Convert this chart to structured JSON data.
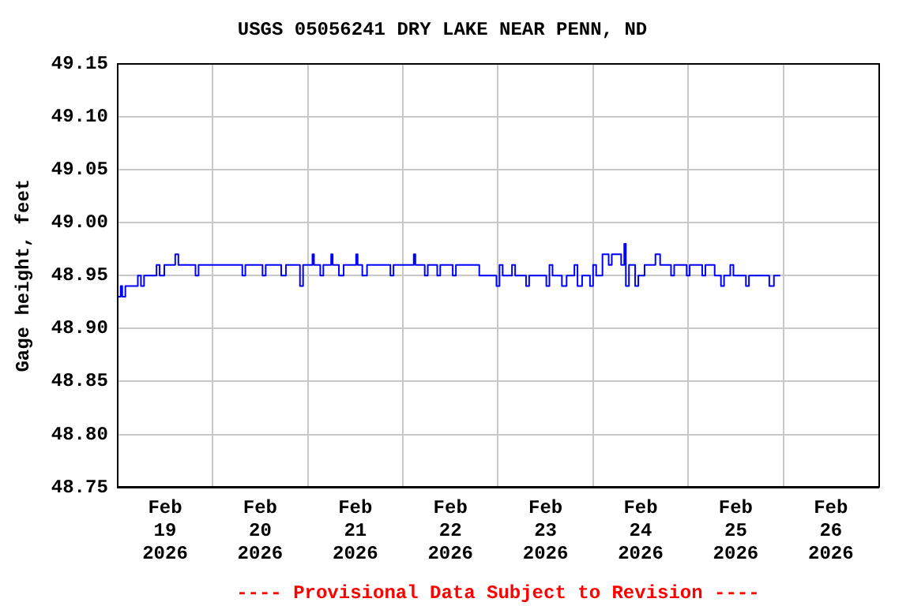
{
  "chart_data": {
    "type": "step",
    "title": "USGS 05056241 DRY LAKE NEAR PENN, ND",
    "ylabel": "Gage height, feet",
    "annotations": [
      "---- Provisional Data Subject to Revision ----"
    ],
    "x": [
      "2026-02-19T00:00",
      "2026-02-19T00:47",
      "2026-02-19T01:11",
      "2026-02-19T01:58",
      "2026-02-19T03:56",
      "2026-02-19T05:07",
      "2026-02-19T05:54",
      "2026-02-19T06:41",
      "2026-02-19T09:50",
      "2026-02-19T10:37",
      "2026-02-19T11:48",
      "2026-02-19T13:46",
      "2026-02-19T14:33",
      "2026-02-19T15:21",
      "2026-02-19T19:40",
      "2026-02-19T20:27",
      "2026-02-20T01:34",
      "2026-02-20T07:29",
      "2026-02-20T08:15",
      "2026-02-20T12:35",
      "2026-02-20T13:23",
      "2026-02-20T17:18",
      "2026-02-20T18:29",
      "2026-02-20T22:02",
      "2026-02-20T22:49",
      "2026-02-21T01:11",
      "2026-02-21T01:34",
      "2026-02-21T03:09",
      "2026-02-21T03:56",
      "2026-02-21T05:54",
      "2026-02-21T06:17",
      "2026-02-21T07:52",
      "2026-02-21T09:03",
      "2026-02-21T12:12",
      "2026-02-21T12:35",
      "2026-02-21T13:46",
      "2026-02-21T14:57",
      "2026-02-21T20:51",
      "2026-02-21T21:38",
      "2026-02-22T02:45",
      "2026-02-22T03:09",
      "2026-02-22T05:31",
      "2026-02-22T06:17",
      "2026-02-22T08:40",
      "2026-02-22T09:26",
      "2026-02-22T12:35",
      "2026-02-22T13:23",
      "2026-02-22T16:31",
      "2026-02-22T19:17",
      "2026-02-22T22:26",
      "2026-02-22T23:37",
      "2026-02-23T00:23",
      "2026-02-23T01:11",
      "2026-02-23T03:32",
      "2026-02-23T04:20",
      "2026-02-23T07:05",
      "2026-02-23T07:52",
      "2026-02-23T12:12",
      "2026-02-23T12:59",
      "2026-02-23T13:46",
      "2026-02-23T16:08",
      "2026-02-23T17:19",
      "2026-02-23T19:17",
      "2026-02-23T20:04",
      "2026-02-23T21:14",
      "2026-02-23T23:13",
      "2026-02-24T00:00",
      "2026-02-24T00:47",
      "2026-02-24T02:22",
      "2026-02-24T03:56",
      "2026-02-24T04:43",
      "2026-02-24T07:05",
      "2026-02-24T07:52",
      "2026-02-24T08:16",
      "2026-02-24T09:03",
      "2026-02-24T10:37",
      "2026-02-24T11:25",
      "2026-02-24T12:59",
      "2026-02-24T15:44",
      "2026-02-24T16:55",
      "2026-02-24T19:40",
      "2026-02-24T20:28",
      "2026-02-24T23:37",
      "2026-02-25T00:23",
      "2026-02-25T03:32",
      "2026-02-25T04:20",
      "2026-02-25T06:41",
      "2026-02-25T08:16",
      "2026-02-25T09:03",
      "2026-02-25T10:37",
      "2026-02-25T11:25",
      "2026-02-25T14:34",
      "2026-02-25T15:20",
      "2026-02-25T19:17",
      "2026-02-25T20:28",
      "2026-02-25T21:38",
      "2026-02-25T23:13"
    ],
    "series": [
      {
        "color": "#0000ff",
        "values": [
          48.93,
          48.94,
          48.93,
          48.94,
          48.94,
          48.95,
          48.94,
          48.95,
          48.96,
          48.95,
          48.96,
          48.96,
          48.97,
          48.96,
          48.95,
          48.96,
          48.96,
          48.95,
          48.96,
          48.95,
          48.96,
          48.95,
          48.96,
          48.94,
          48.96,
          48.97,
          48.96,
          48.95,
          48.96,
          48.97,
          48.96,
          48.95,
          48.96,
          48.97,
          48.96,
          48.95,
          48.96,
          48.95,
          48.96,
          48.97,
          48.96,
          48.95,
          48.96,
          48.95,
          48.96,
          48.95,
          48.96,
          48.96,
          48.95,
          48.95,
          48.94,
          48.96,
          48.95,
          48.96,
          48.95,
          48.94,
          48.95,
          48.94,
          48.96,
          48.95,
          48.94,
          48.95,
          48.96,
          48.94,
          48.95,
          48.94,
          48.96,
          48.95,
          48.97,
          48.96,
          48.97,
          48.96,
          48.98,
          48.94,
          48.96,
          48.94,
          48.95,
          48.96,
          48.97,
          48.96,
          48.95,
          48.96,
          48.95,
          48.96,
          48.95,
          48.96,
          48.95,
          48.94,
          48.95,
          48.96,
          48.95,
          48.94,
          48.95,
          48.95,
          48.94,
          48.95,
          48.95
        ]
      }
    ],
    "xlim": [
      "2026-02-19",
      "2026-02-27"
    ],
    "xticks": [
      {
        "value": "2026-02-19T12:00",
        "label": "Feb\n19\n2026"
      },
      {
        "value": "2026-02-20T12:00",
        "label": "Feb\n20\n2026"
      },
      {
        "value": "2026-02-21T12:00",
        "label": "Feb\n21\n2026"
      },
      {
        "value": "2026-02-22T12:00",
        "label": "Feb\n22\n2026"
      },
      {
        "value": "2026-02-23T12:00",
        "label": "Feb\n23\n2026"
      },
      {
        "value": "2026-02-24T12:00",
        "label": "Feb\n24\n2026"
      },
      {
        "value": "2026-02-25T12:00",
        "label": "Feb\n25\n2026"
      },
      {
        "value": "2026-02-26T12:00",
        "label": "Feb\n26\n2026"
      },
      {
        "value": "2026-02-20",
        "label": null
      },
      {
        "value": "2026-02-21",
        "label": null
      },
      {
        "value": "2026-02-22",
        "label": null
      },
      {
        "value": "2026-02-23",
        "label": null
      },
      {
        "value": "2026-02-24",
        "label": null
      },
      {
        "value": "2026-02-25",
        "label": null
      },
      {
        "value": "2026-02-26",
        "label": null
      }
    ],
    "ylim": [
      48.75,
      49.15
    ],
    "yticks": [
      48.75,
      {
        "value": 48.8,
        "label": "48.80"
      },
      48.85,
      {
        "value": 48.9,
        "label": "48.90"
      },
      48.95,
      {
        "value": 49.0,
        "label": "49.00"
      },
      49.05,
      {
        "value": 49.1,
        "label": "49.10"
      },
      49.15
    ],
    "grid": true,
    "legend": false,
    "marker": "none",
    "line_style": "solid"
  }
}
